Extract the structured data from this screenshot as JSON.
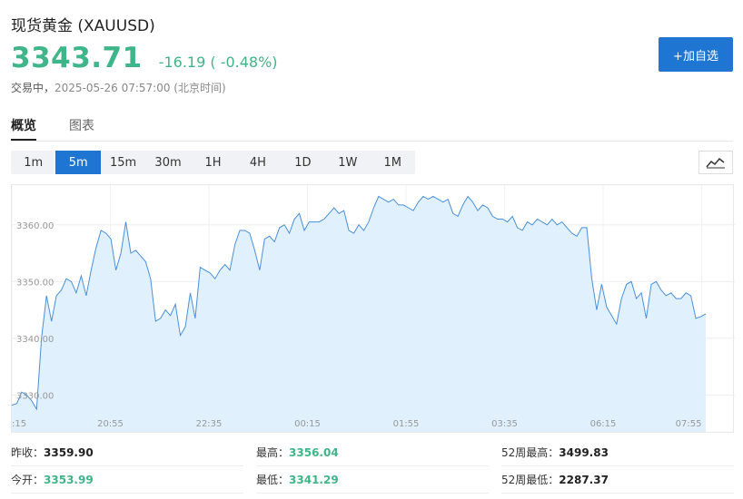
{
  "header": {
    "title": "现货黄金 (XAUUSD)",
    "price": "3343.71",
    "change": "-16.19 ( -0.48%)",
    "status_label": "交易中，",
    "timestamp": "2025-05-26 07:57:00 (北京时间)",
    "add_button": "+加自选"
  },
  "tabs": [
    {
      "label": "概览",
      "active": true
    },
    {
      "label": "图表",
      "active": false
    }
  ],
  "periods": [
    "1m",
    "5m",
    "15m",
    "30m",
    "1H",
    "4H",
    "1D",
    "1W",
    "1M"
  ],
  "active_period": "5m",
  "colors": {
    "up_green": "#3fb58a",
    "accent": "#1f76d2",
    "line": "#4a90d9",
    "fill": "#ddeefc"
  },
  "chart_data": {
    "type": "area",
    "y_ticks": [
      "3360.00",
      "3350.00",
      "3340.00",
      "3330.00"
    ],
    "y_tick_values": [
      3360,
      3350,
      3340,
      3330
    ],
    "x_labels": [
      ":15",
      "20:55",
      "22:35",
      "00:15",
      "01:55",
      "03:35",
      "06:15",
      "07:55"
    ],
    "ylim": [
      3323.5,
      3367
    ],
    "values": [
      3328.2,
      3328.5,
      3330.5,
      3330.0,
      3329.0,
      3327.5,
      3340.0,
      3347.5,
      3343.0,
      3347.5,
      3348.5,
      3350.5,
      3350.0,
      3348.0,
      3351.0,
      3347.5,
      3352.0,
      3356.0,
      3359.0,
      3358.5,
      3357.5,
      3352.0,
      3355.0,
      3360.5,
      3355.0,
      3355.5,
      3354.5,
      3353.5,
      3350.5,
      3343.0,
      3343.5,
      3345.0,
      3344.0,
      3346.0,
      3340.5,
      3342.0,
      3348.0,
      3343.5,
      3352.5,
      3352.0,
      3351.5,
      3350.5,
      3352.0,
      3353.0,
      3352.0,
      3356.5,
      3359.0,
      3359.0,
      3358.5,
      3355.5,
      3352.0,
      3357.5,
      3358.0,
      3357.0,
      3359.5,
      3360.0,
      3358.5,
      3361.0,
      3362.0,
      3359.0,
      3360.5,
      3360.5,
      3360.5,
      3361.0,
      3362.0,
      3363.0,
      3362.0,
      3362.5,
      3359.0,
      3358.5,
      3360.0,
      3359.0,
      3360.5,
      3363.0,
      3365.0,
      3364.5,
      3364.0,
      3364.5,
      3363.5,
      3363.5,
      3363.0,
      3362.5,
      3364.0,
      3365.0,
      3364.5,
      3365.0,
      3364.5,
      3364.0,
      3364.5,
      3362.0,
      3361.5,
      3363.5,
      3365.0,
      3364.0,
      3362.5,
      3363.5,
      3363.0,
      3361.5,
      3361.0,
      3361.0,
      3360.5,
      3361.5,
      3359.5,
      3359.0,
      3360.5,
      3360.0,
      3361.0,
      3360.5,
      3360.0,
      3361.0,
      3360.0,
      3360.5,
      3359.5,
      3358.5,
      3358.0,
      3359.5,
      3359.5,
      3350.5,
      3345.0,
      3349.5,
      3345.5,
      3344.0,
      3342.5,
      3347.0,
      3349.5,
      3350.0,
      3347.0,
      3348.0,
      3343.5,
      3349.5,
      3350.0,
      3348.5,
      3347.5,
      3348.0,
      3347.0,
      3347.0,
      3348.0,
      3347.5,
      3343.5,
      3343.8,
      3344.3
    ]
  },
  "stats": [
    [
      {
        "label": "昨收：",
        "value": "3359.90",
        "style": "bold"
      },
      {
        "label": "最高：",
        "value": "3356.04",
        "style": "green"
      },
      {
        "label": "52周最高：",
        "value": "3499.83",
        "style": "bold"
      }
    ],
    [
      {
        "label": "今开：",
        "value": "3353.99",
        "style": "green"
      },
      {
        "label": "最低：",
        "value": "3341.29",
        "style": "green"
      },
      {
        "label": "52周最低：",
        "value": "2287.37",
        "style": "bold"
      }
    ]
  ]
}
